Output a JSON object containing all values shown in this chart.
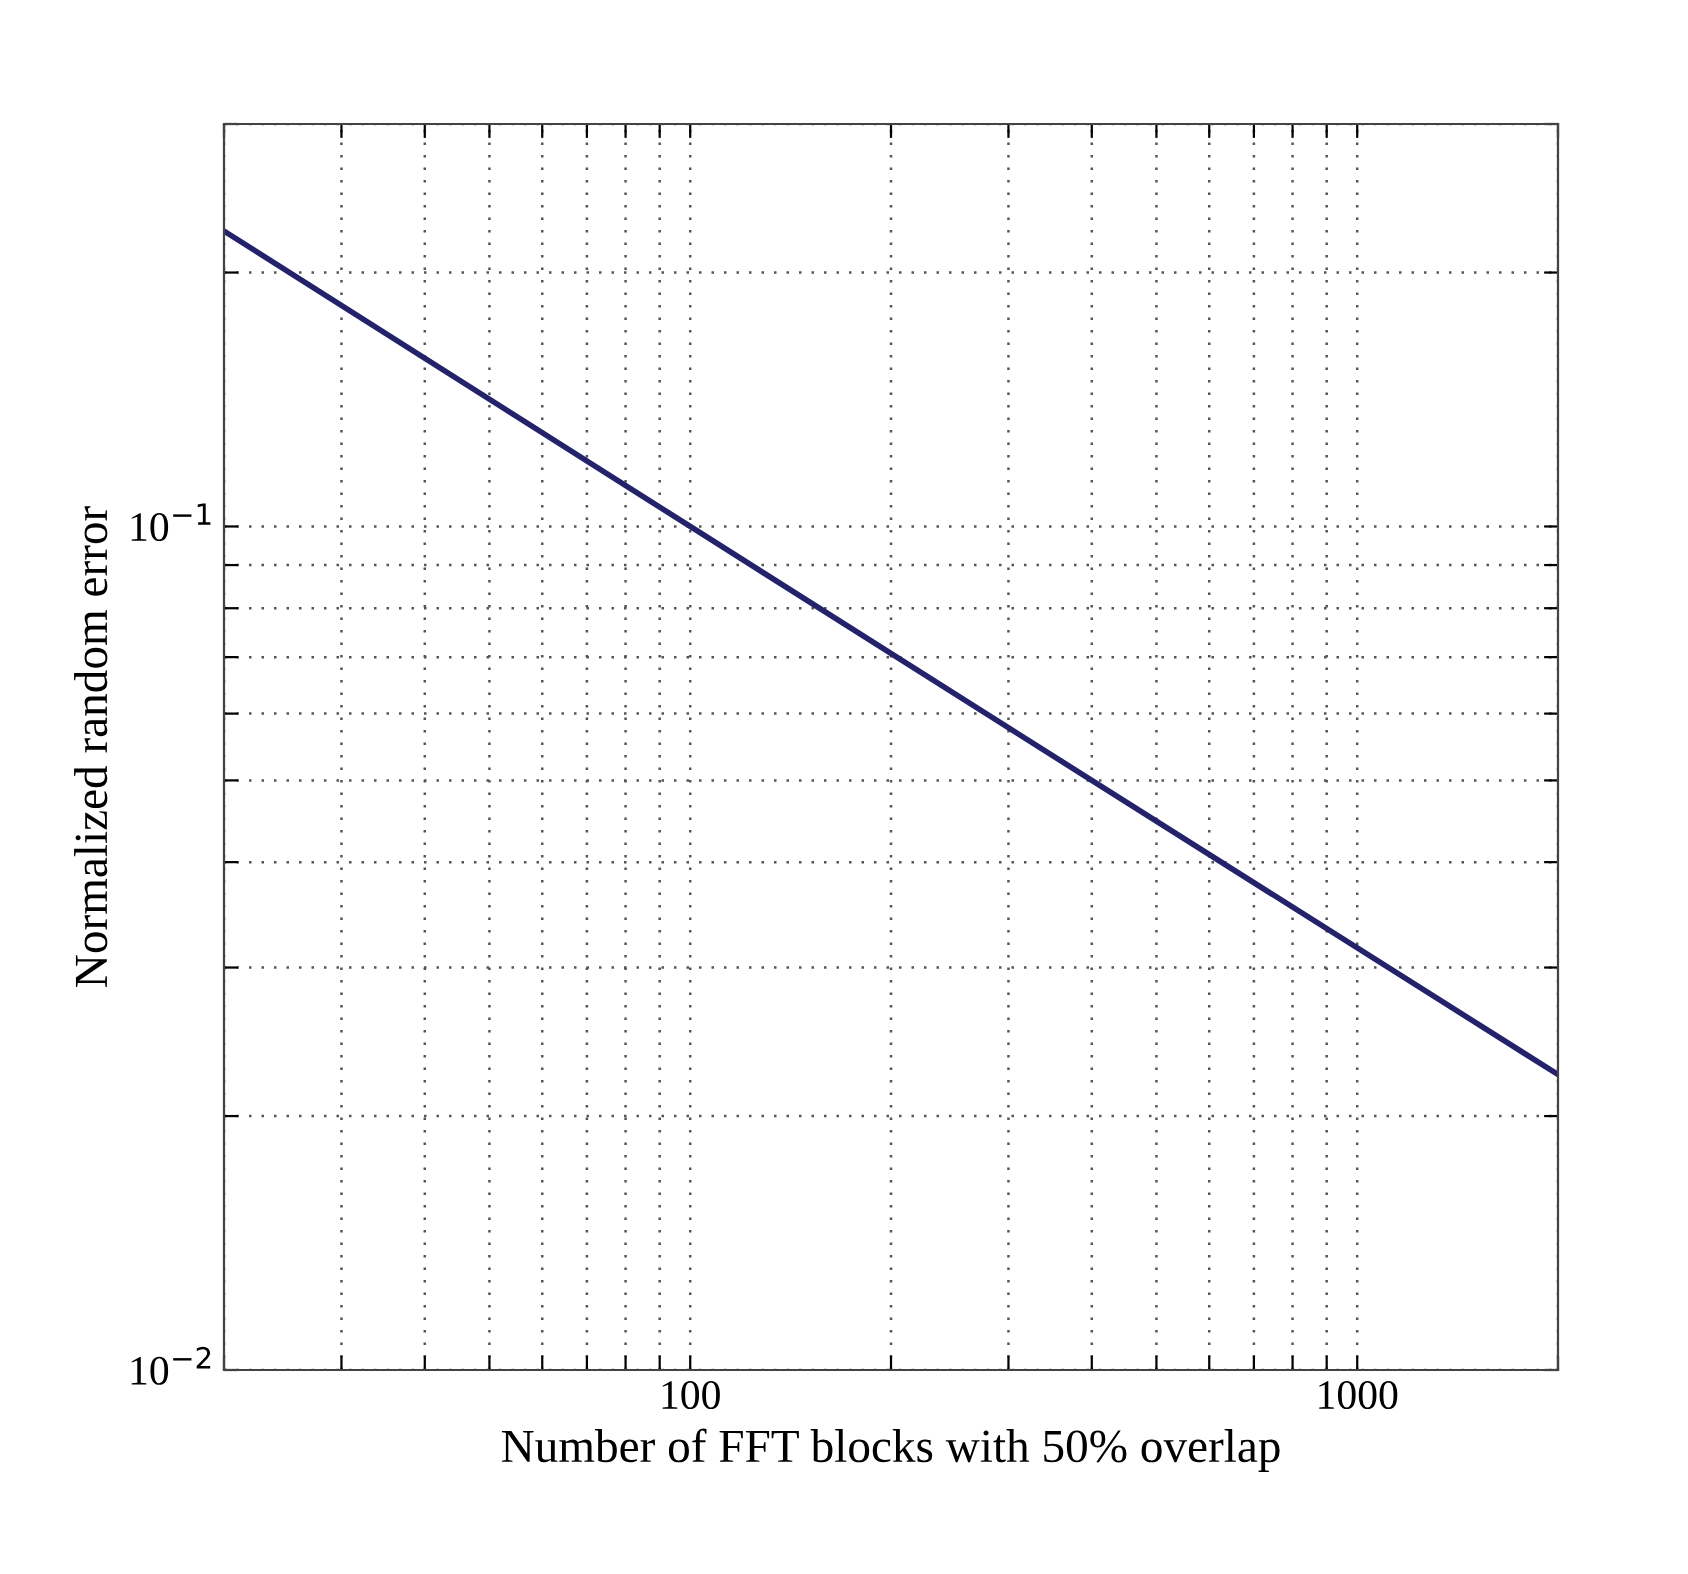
{
  "chart_data": {
    "type": "line",
    "xlabel": "Number of FFT blocks with 50% overlap",
    "ylabel": "Normalized random error",
    "log": "xy",
    "grid": true,
    "line_style": "solid",
    "marker": "none",
    "xlim": [
      20,
      2000
    ],
    "ylim": [
      0.01,
      0.3
    ],
    "xticks": [
      {
        "value": 20,
        "label": null
      },
      {
        "value": 30,
        "label": null
      },
      {
        "value": 40,
        "label": null
      },
      {
        "value": 50,
        "label": null
      },
      {
        "value": 60,
        "label": null
      },
      {
        "value": 70,
        "label": null
      },
      {
        "value": 80,
        "label": null
      },
      {
        "value": 90,
        "label": null
      },
      100,
      {
        "value": 200,
        "label": null
      },
      {
        "value": 300,
        "label": null
      },
      {
        "value": 400,
        "label": null
      },
      {
        "value": 500,
        "label": null
      },
      {
        "value": 600,
        "label": null
      },
      {
        "value": 700,
        "label": null
      },
      {
        "value": 800,
        "label": null
      },
      {
        "value": 900,
        "label": null
      },
      1000,
      {
        "value": 2000,
        "label": null
      }
    ],
    "yticks": [
      {
        "value": 0.01,
        "label": "10$^{−2}$"
      },
      {
        "value": 0.02,
        "label": null
      },
      {
        "value": 0.03,
        "label": null
      },
      {
        "value": 0.04,
        "label": null
      },
      {
        "value": 0.05,
        "label": null
      },
      {
        "value": 0.06,
        "label": null
      },
      {
        "value": 0.07,
        "label": null
      },
      {
        "value": 0.08,
        "label": null
      },
      {
        "value": 0.09,
        "label": null
      },
      {
        "value": 0.1,
        "label": "10$^{−1}$"
      },
      {
        "value": 0.2,
        "label": null
      },
      {
        "value": 0.3,
        "label": null
      }
    ],
    "series": [
      {
        "color": "#23226b",
        "x": [
          20,
          100,
          400,
          2000
        ],
        "values": [
          0.224,
          0.1,
          0.05,
          0.0224
        ]
      }
    ]
  }
}
